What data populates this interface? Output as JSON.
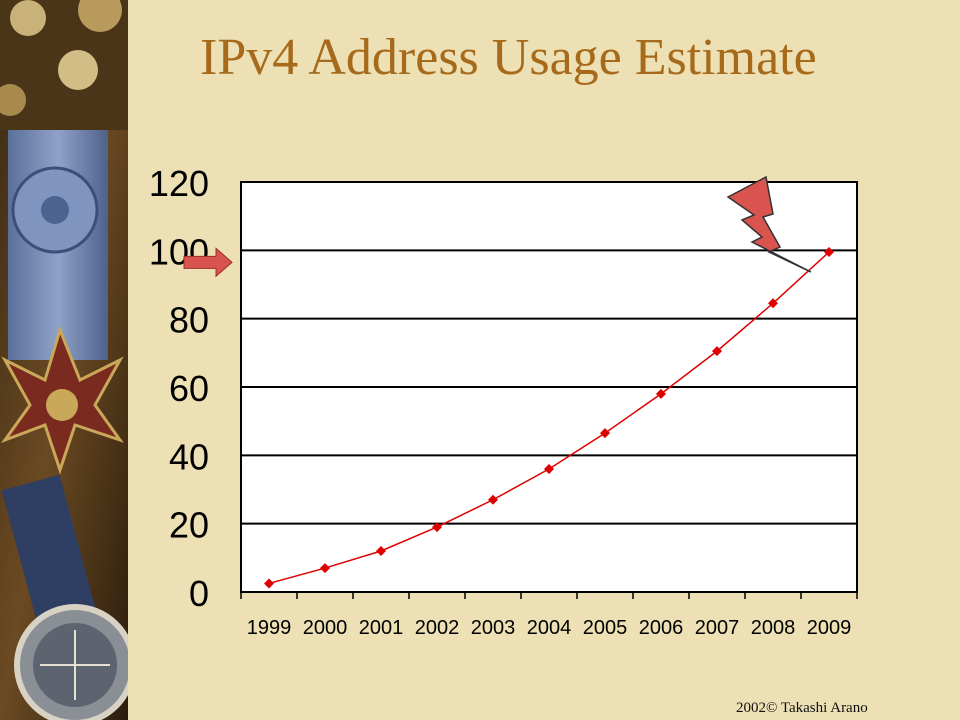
{
  "slide": {
    "title": "IPv4 Address Usage Estimate",
    "copyright": "2002© Takashi Arano"
  },
  "colors": {
    "background": "#ECE0B4",
    "title": "#A66A1A",
    "series_line": "#E00000",
    "arrow": "#D9534F"
  },
  "decorations": {
    "left_panel": "medal-and-compass-photo",
    "pointer_arrow": "right-arrow-icon",
    "lightning": "lightning-bolt-icon"
  },
  "chart_data": {
    "type": "line",
    "title": "",
    "xlabel": "",
    "ylabel": "",
    "x": [
      "1999",
      "2000",
      "2001",
      "2002",
      "2003",
      "2004",
      "2005",
      "2006",
      "2007",
      "2008",
      "2009"
    ],
    "series": [
      {
        "values": [
          2.5,
          7,
          12,
          19,
          27,
          36,
          46.5,
          58,
          70.5,
          84.5,
          99.5
        ]
      }
    ],
    "ylim": [
      0,
      120
    ],
    "yticks": [
      "0",
      "20",
      "40",
      "60",
      "80",
      "100",
      "120"
    ],
    "grid": "horizontal",
    "legend": "none",
    "annotations": [
      {
        "type": "arrow",
        "points_to_y": 100
      },
      {
        "type": "lightning",
        "points_to_x": "2009"
      }
    ]
  }
}
